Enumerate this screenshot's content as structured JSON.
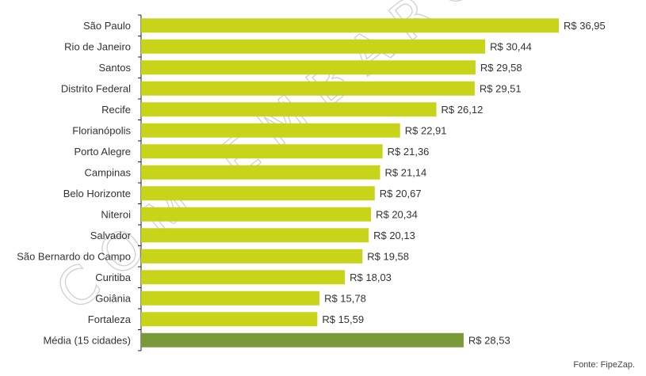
{
  "chart_data": {
    "type": "bar",
    "orientation": "horizontal",
    "categories": [
      "São Paulo",
      "Rio de Janeiro",
      "Santos",
      "Distrito Federal",
      "Recife",
      "Florianópolis",
      "Porto Alegre",
      "Campinas",
      "Belo Horizonte",
      "Niteroi",
      "Salvador",
      "São Bernardo do Campo",
      "Curitiba",
      "Goiânia",
      "Fortaleza",
      "Média (15 cidades)"
    ],
    "values": [
      36.95,
      30.44,
      29.58,
      29.51,
      26.12,
      22.91,
      21.36,
      21.14,
      20.67,
      20.34,
      20.13,
      19.58,
      18.03,
      15.78,
      15.59,
      28.53
    ],
    "value_labels": [
      "R$ 36,95",
      "R$ 30,44",
      "R$ 29,58",
      "R$ 29,51",
      "R$ 26,12",
      "R$ 22,91",
      "R$ 21,36",
      "R$ 21,14",
      "R$ 20,67",
      "R$ 20,34",
      "R$ 20,13",
      "R$ 19,58",
      "R$ 18,03",
      "R$ 15,78",
      "R$ 15,59",
      "R$ 28,53"
    ],
    "xlim": [
      0,
      36.95
    ],
    "grid": false,
    "bar_color": "#c8d419",
    "highlight_color": "#7a9a3a",
    "highlight_index": 15,
    "source": "Fonte: FipeZap.",
    "watermark": "COM EMBARGO"
  }
}
